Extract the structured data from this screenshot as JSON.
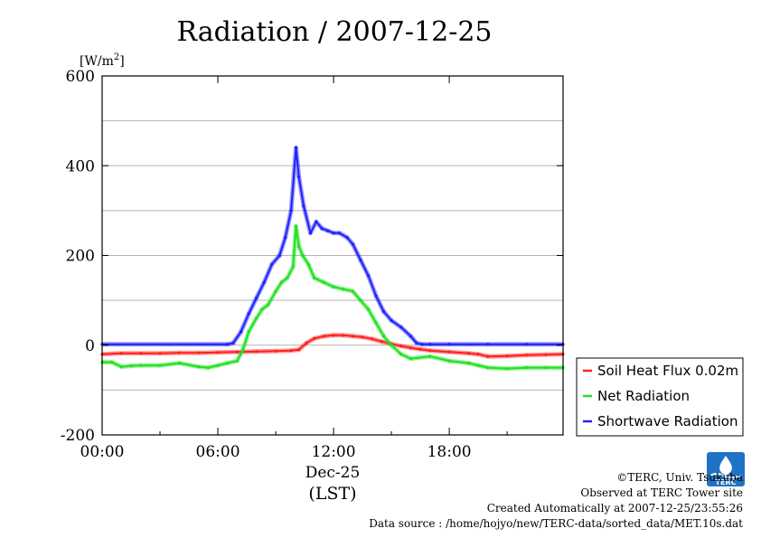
{
  "chart_data": {
    "type": "line",
    "title": "Radiation / 2007-12-25",
    "ylabel_unit_base": "[W/m",
    "ylabel_unit_exp": "2",
    "ylabel_unit_close": "]",
    "xlabel_date": "Dec-25",
    "xlabel": "(LST)",
    "ylim": [
      -200,
      600
    ],
    "xlim": [
      0,
      23.9
    ],
    "grid": true,
    "y_ticks": [
      {
        "value": -200,
        "label": "-200"
      },
      {
        "value": 0,
        "label": "0"
      },
      {
        "value": 200,
        "label": "200"
      },
      {
        "value": 400,
        "label": "400"
      },
      {
        "value": 600,
        "label": "600"
      }
    ],
    "y_gridlines": [
      -100,
      0,
      100,
      200,
      300,
      400,
      500
    ],
    "x_ticks": [
      {
        "value": 0,
        "label": "00:00"
      },
      {
        "value": 6,
        "label": "06:00"
      },
      {
        "value": 12,
        "label": "12:00"
      },
      {
        "value": 18,
        "label": "18:00"
      }
    ],
    "x_minor_ticks": [
      3,
      9,
      15,
      21
    ],
    "legend_position": "outside-right",
    "series": [
      {
        "name": "Soil Heat Flux 0.02m",
        "color": "#ff2020",
        "x": [
          0,
          1,
          2,
          3,
          4,
          5,
          6,
          7,
          8,
          9,
          9.8,
          10.2,
          10.6,
          11,
          11.5,
          12,
          12.5,
          13,
          13.5,
          14,
          14.5,
          15,
          15.5,
          16,
          16.5,
          17,
          18,
          19,
          19.5,
          20,
          21,
          22,
          23,
          23.9
        ],
        "y": [
          -20,
          -18,
          -18,
          -18,
          -17,
          -17,
          -16,
          -15,
          -14,
          -13,
          -12,
          -10,
          5,
          15,
          20,
          22,
          22,
          20,
          18,
          14,
          8,
          3,
          -2,
          -6,
          -9,
          -12,
          -15,
          -18,
          -20,
          -25,
          -24,
          -22,
          -21,
          -20
        ]
      },
      {
        "name": "Net Radiation",
        "color": "#20e020",
        "x": [
          0,
          0.5,
          1,
          1.5,
          2,
          3,
          4,
          5,
          5.5,
          6,
          6.5,
          7,
          7.3,
          7.6,
          8,
          8.3,
          8.6,
          9,
          9.3,
          9.6,
          9.9,
          10.05,
          10.2,
          10.4,
          10.7,
          11,
          11.5,
          12,
          12.5,
          13,
          13.4,
          13.8,
          14.2,
          14.6,
          15,
          15.5,
          16,
          17,
          18,
          19,
          19.5,
          20,
          21,
          22,
          23,
          23.9
        ],
        "y": [
          -38,
          -38,
          -48,
          -46,
          -45,
          -45,
          -40,
          -48,
          -50,
          -45,
          -40,
          -35,
          -10,
          30,
          60,
          80,
          90,
          120,
          140,
          150,
          175,
          265,
          220,
          200,
          180,
          150,
          140,
          130,
          125,
          120,
          100,
          80,
          50,
          20,
          0,
          -20,
          -30,
          -25,
          -35,
          -40,
          -45,
          -50,
          -52,
          -50,
          -50,
          -50
        ]
      },
      {
        "name": "Shortwave Radiation",
        "color": "#2020ff",
        "x": [
          0,
          6.5,
          6.8,
          7.2,
          7.6,
          8,
          8.4,
          8.8,
          9.2,
          9.5,
          9.8,
          10.05,
          10.2,
          10.45,
          10.8,
          11.1,
          11.4,
          11.7,
          12,
          12.3,
          12.7,
          13,
          13.4,
          13.8,
          14.2,
          14.6,
          15,
          15.5,
          16,
          16.3,
          16.6,
          17,
          18,
          20,
          22,
          23.9
        ],
        "y": [
          2,
          2,
          5,
          30,
          70,
          105,
          140,
          180,
          200,
          240,
          300,
          440,
          375,
          310,
          250,
          275,
          260,
          255,
          250,
          250,
          240,
          225,
          190,
          155,
          110,
          75,
          55,
          40,
          20,
          5,
          2,
          2,
          2,
          2,
          2,
          2
        ]
      }
    ],
    "credits": {
      "copyright": "©TERC, Univ. Tsukuba",
      "observed": "Observed at TERC Tower site",
      "created": "Created Automatically at 2007-12-25/23:55:26",
      "source": "Data source : /home/hojyo/new/TERC-data/sorted_data/MET.10s.dat",
      "logo_text": "TERC"
    }
  }
}
